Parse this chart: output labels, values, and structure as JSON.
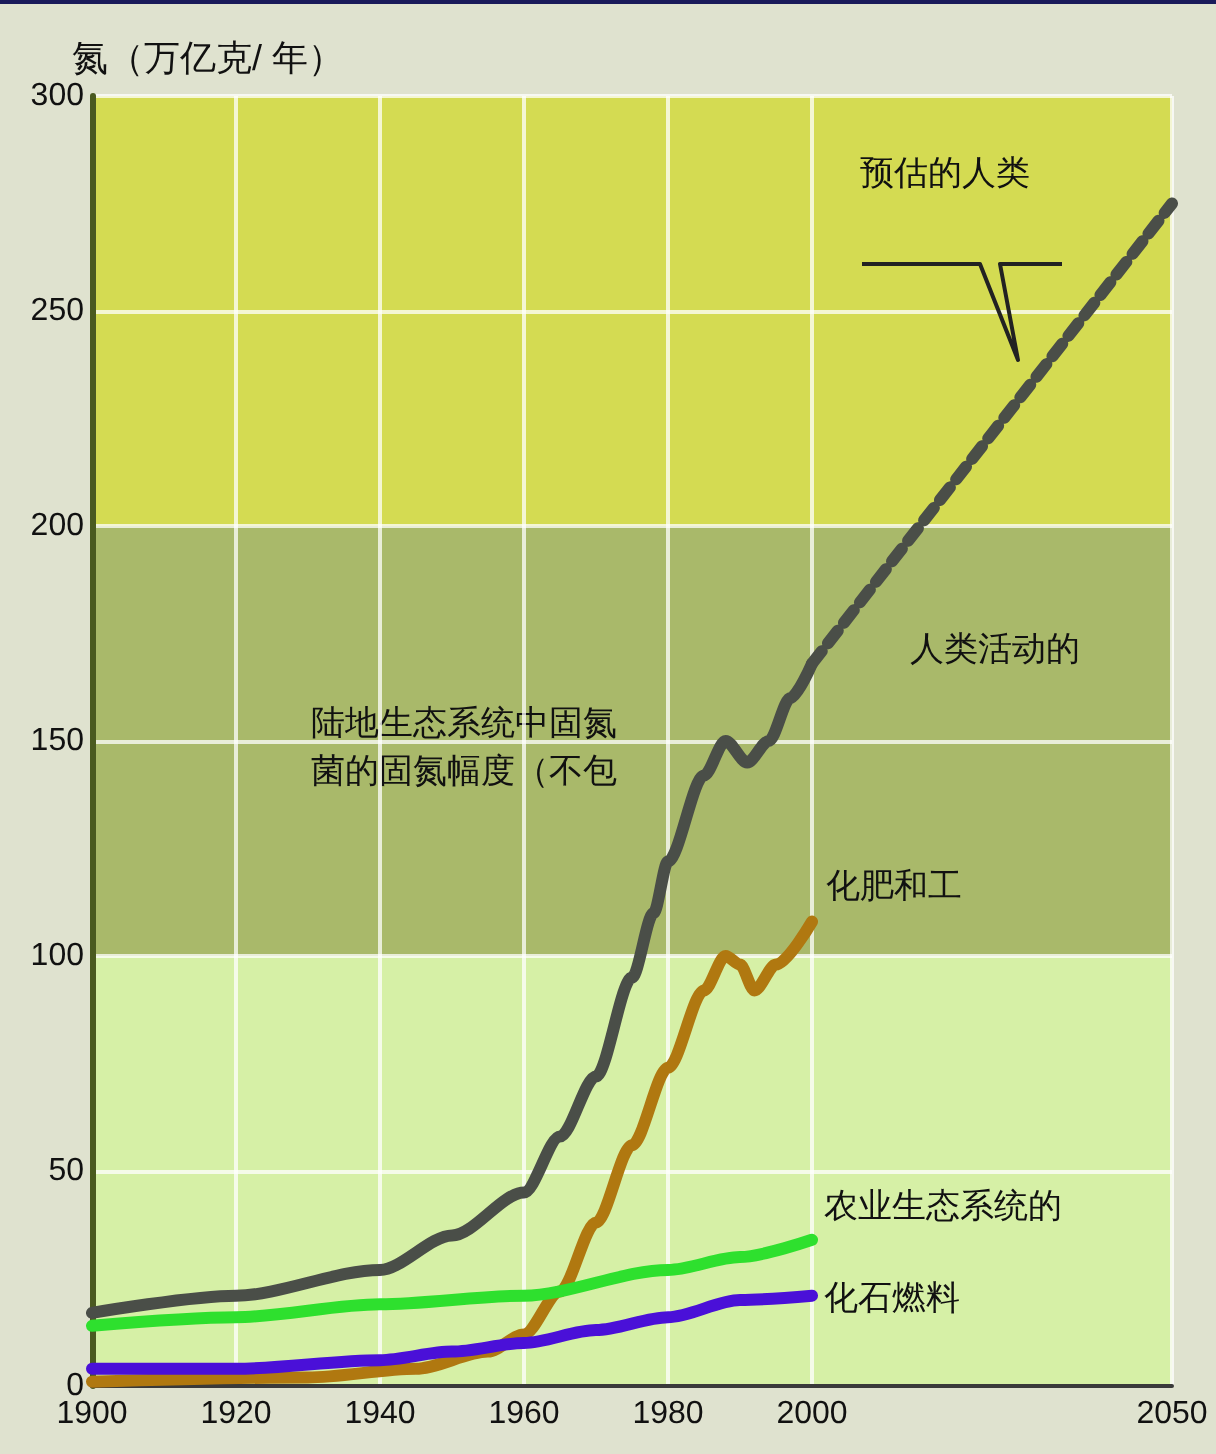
{
  "chart_data": {
    "type": "line",
    "ylabel": "氮（万亿克/ 年）",
    "xlim": [
      1900,
      2050
    ],
    "xticks": [
      1900,
      1920,
      1940,
      1960,
      1980,
      2000,
      2050
    ],
    "ylim": [
      0,
      300
    ],
    "yticks": [
      0,
      50,
      100,
      150,
      200,
      250,
      300
    ],
    "annotations": [
      "人类活动的",
      "预估的人类"
    ],
    "grid": true,
    "legend": false,
    "marker": "none",
    "bands": [
      {
        "axis": "y",
        "from": 0,
        "to": 100,
        "color": "#d6f0a6"
      },
      {
        "axis": "y",
        "from": 100,
        "to": 200,
        "color": "#a9b96a",
        "label": "陆地生态系统中固氮菌的固氮幅度（不包"
      },
      {
        "axis": "y",
        "from": 200,
        "to": 300,
        "color": "#d4db52"
      }
    ],
    "series": [
      {
        "color": "#4a4e48",
        "line_style": "solid",
        "x": [
          1900,
          1920,
          1940,
          1950,
          1960,
          1965,
          1970,
          1975,
          1978,
          1980,
          1985,
          1988,
          1991,
          1994,
          1997,
          2000
        ],
        "values": [
          17,
          21,
          27,
          35,
          45,
          58,
          72,
          95,
          110,
          122,
          142,
          150,
          145,
          150,
          160,
          168
        ]
      },
      {
        "color": "#4a4e48",
        "line_style": "dashed",
        "x": [
          2000,
          2050
        ],
        "values": [
          168,
          275
        ]
      },
      {
        "name": "化肥和工",
        "color": "#b07810",
        "line_style": "solid",
        "x": [
          1900,
          1930,
          1945,
          1955,
          1960,
          1965,
          1970,
          1975,
          1980,
          1985,
          1988,
          1990,
          1992,
          1995,
          2000
        ],
        "values": [
          1,
          2,
          4,
          8,
          12,
          22,
          38,
          56,
          74,
          92,
          100,
          98,
          92,
          98,
          108
        ]
      },
      {
        "name": "农业生态系统的",
        "color": "#2ee02e",
        "line_style": "solid",
        "x": [
          1900,
          1920,
          1940,
          1960,
          1980,
          1990,
          2000
        ],
        "values": [
          14,
          16,
          19,
          21,
          27,
          30,
          34
        ]
      },
      {
        "name": "化石燃料",
        "color": "#4a10d8",
        "line_style": "solid",
        "x": [
          1900,
          1920,
          1940,
          1950,
          1960,
          1970,
          1980,
          1990,
          2000
        ],
        "values": [
          4,
          4,
          6,
          8,
          10,
          13,
          16,
          20,
          21
        ]
      }
    ]
  }
}
